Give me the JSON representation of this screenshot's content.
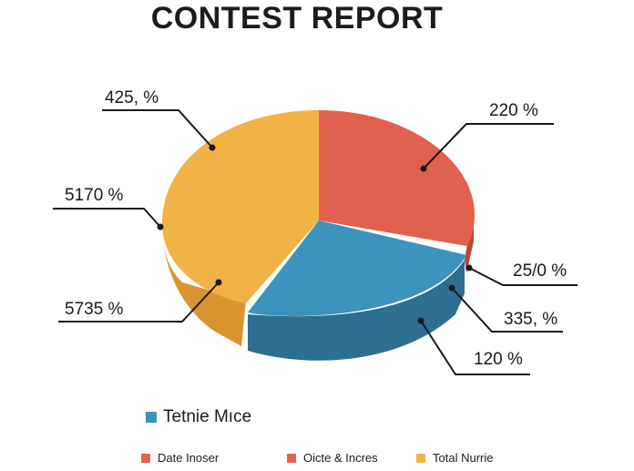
{
  "colors": {
    "red": "#e2614e",
    "red_dark": "#b8443a",
    "blue": "#3c93bd",
    "blue_dark": "#2e6f90",
    "yellow": "#f1b346",
    "yellow_dark": "#d9942f"
  },
  "chart_data": {
    "type": "pie",
    "style": "3d",
    "title": "CONTEST REPORT",
    "slices": [
      {
        "color": "red"
      },
      {
        "color": "blue"
      },
      {
        "color": "yellow"
      }
    ],
    "callouts": [
      "425, %",
      "220  %",
      "5170 %",
      "25/0  %",
      "5735 %",
      "335, %",
      "120  %"
    ],
    "legend": {
      "main": {
        "label": "Tetnie Mıce",
        "color": "blue"
      },
      "items": [
        {
          "label": "Date Inoser",
          "color": "red"
        },
        {
          "label": "Oicte & Incres",
          "color": "red"
        },
        {
          "label": "Total Nurrie",
          "color": "yellow"
        }
      ]
    }
  }
}
